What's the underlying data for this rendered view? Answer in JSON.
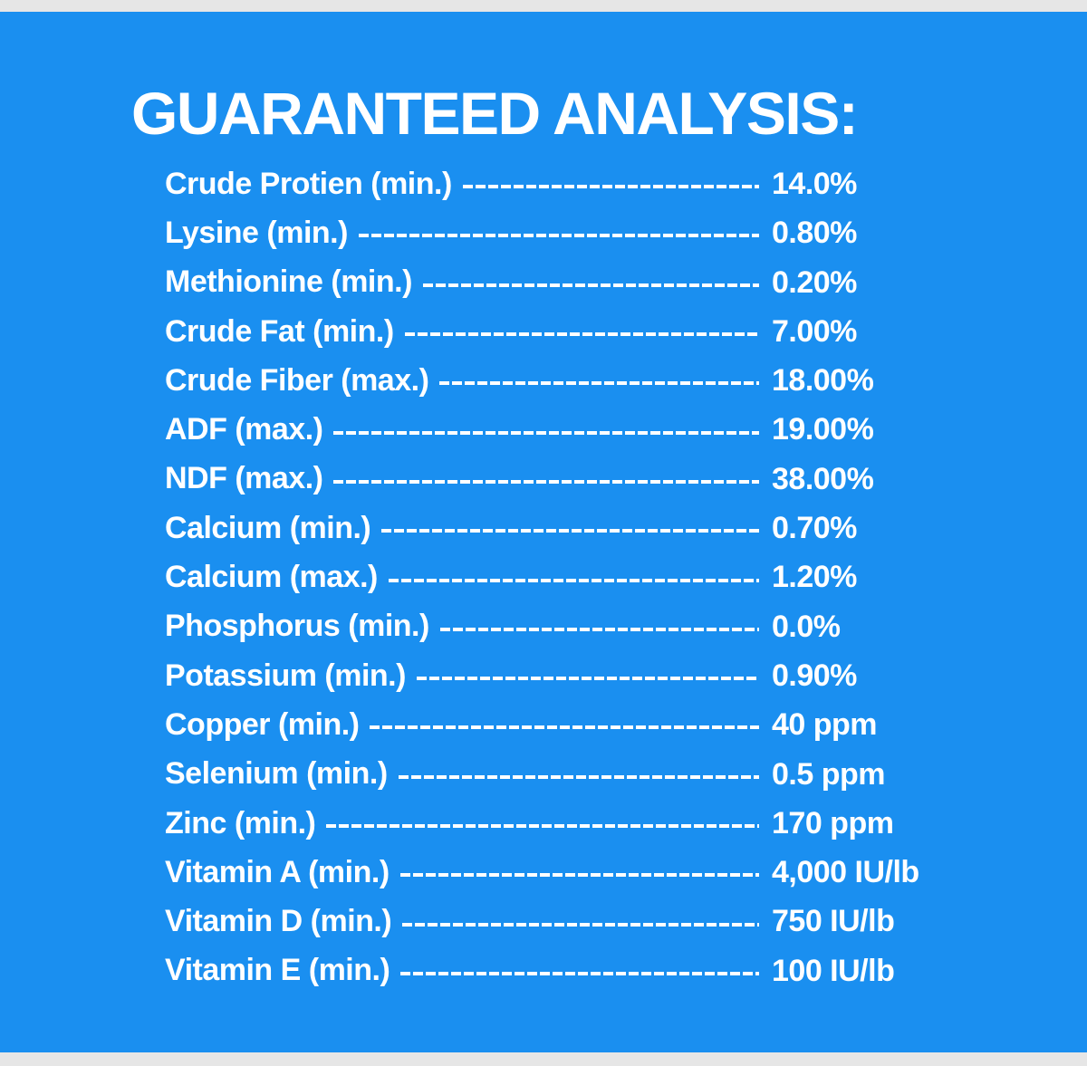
{
  "title": "GUARANTEED ANALYSIS:",
  "rows": [
    {
      "label": "Crude Protien (min.)",
      "value": "14.0%"
    },
    {
      "label": "Lysine (min.)",
      "value": "0.80%"
    },
    {
      "label": "Methionine (min.)",
      "value": "0.20%"
    },
    {
      "label": "Crude Fat (min.)",
      "value": "7.00%"
    },
    {
      "label": "Crude Fiber (max.)",
      "value": "18.00%"
    },
    {
      "label": "ADF (max.)",
      "value": "19.00%"
    },
    {
      "label": "NDF (max.)",
      "value": "38.00%"
    },
    {
      "label": "Calcium (min.)",
      "value": "0.70%"
    },
    {
      "label": "Calcium (max.)",
      "value": "1.20%"
    },
    {
      "label": "Phosphorus (min.)",
      "value": "0.0%"
    },
    {
      "label": "Potassium (min.)",
      "value": "0.90%"
    },
    {
      "label": "Copper (min.)",
      "value": "40 ppm"
    },
    {
      "label": "Selenium (min.)",
      "value": "0.5 ppm"
    },
    {
      "label": "Zinc (min.)",
      "value": "170 ppm"
    },
    {
      "label": "Vitamin A (min.)",
      "value": "4,000 IU/lb"
    },
    {
      "label": "Vitamin D (min.)",
      "value": "750 IU/lb"
    },
    {
      "label": "Vitamin E (min.)",
      "value": "100 IU/lb"
    }
  ]
}
